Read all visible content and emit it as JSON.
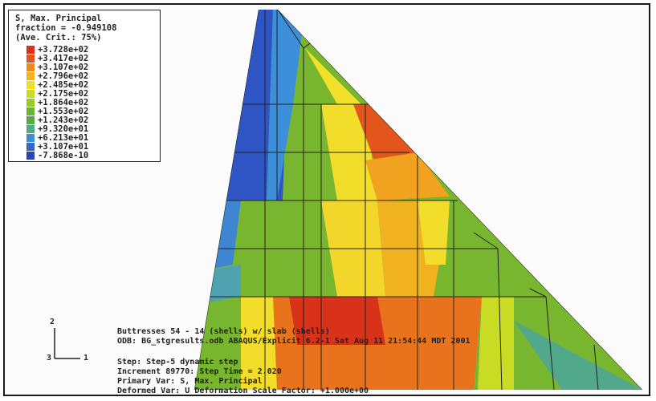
{
  "legend": {
    "title_lines": [
      "S, Max. Principal",
      "fraction = -0.949108",
      "(Ave. Crit.: 75%)"
    ],
    "entries": [
      {
        "label": "+3.728e+02",
        "color": "#d8331a"
      },
      {
        "label": "+3.417e+02",
        "color": "#e4531c"
      },
      {
        "label": "+3.107e+02",
        "color": "#ef8a1c"
      },
      {
        "label": "+2.796e+02",
        "color": "#f3b41e"
      },
      {
        "label": "+2.485e+02",
        "color": "#f2dd2a"
      },
      {
        "label": "+2.175e+02",
        "color": "#cadb24"
      },
      {
        "label": "+1.864e+02",
        "color": "#99c92a"
      },
      {
        "label": "+1.553e+02",
        "color": "#6bb13a"
      },
      {
        "label": "+1.243e+02",
        "color": "#5aa84a"
      },
      {
        "label": "+9.320e+01",
        "color": "#52a88a"
      },
      {
        "label": "+6.213e+01",
        "color": "#3e8fd0"
      },
      {
        "label": "+3.107e+01",
        "color": "#3566c8"
      },
      {
        "label": "-7.868e-10",
        "color": "#2a45b5"
      }
    ]
  },
  "info_lines": [
    "Buttresses 54 - 14 (shells) w/ slab (shells)",
    "ODB: BG_stgresults.odb    ABAQUS/Explicit 6.2-1    Sat Aug 11 21:54:44 MDT 2001",
    "",
    "Step: Step-5  dynamic step",
    "Increment   89770: Step Time =    2.020",
    "Primary Var: S, Max. Principal",
    "Deformed Var: U   Deformation Scale Factor: +1.000e+00"
  ],
  "axes": {
    "vertical": "2",
    "horizontal": "1",
    "origin": "3"
  }
}
